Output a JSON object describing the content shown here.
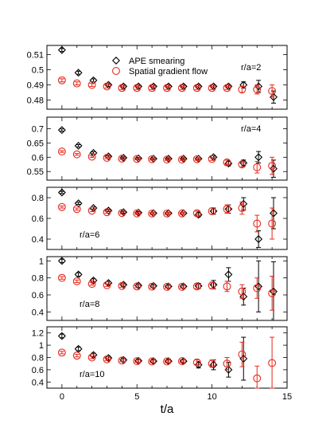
{
  "chart_data": {
    "type": "scatter",
    "xlabel": "t/a",
    "xlim": [
      -1,
      15
    ],
    "xticks": [
      "0",
      "5",
      "10",
      "15"
    ],
    "legend": {
      "placement": "top-center",
      "entries": [
        {
          "name": "APE smearing",
          "marker": "diamond",
          "color": "#000000"
        },
        {
          "name": "Spatial gradient flow",
          "marker": "circle",
          "color": "#e8291c"
        }
      ]
    },
    "panels": [
      {
        "label": "r/a=2",
        "ylim": [
          0.474,
          0.516
        ],
        "yticks": [
          "0.48",
          "0.49",
          "0.5",
          "0.51"
        ],
        "series": [
          {
            "name": "APE smearing",
            "points": [
              [
                0,
                0.513,
                0.001
              ],
              [
                1.1,
                0.498,
                0.001
              ],
              [
                2.1,
                0.493,
                0.001
              ],
              [
                3.1,
                0.49,
                0.001
              ],
              [
                4.1,
                0.489,
                0.001
              ],
              [
                5.1,
                0.489,
                0.001
              ],
              [
                6.1,
                0.489,
                0.001
              ],
              [
                7.1,
                0.489,
                0.001
              ],
              [
                8.1,
                0.489,
                0.001
              ],
              [
                9.1,
                0.489,
                0.001
              ],
              [
                10.1,
                0.489,
                0.001
              ],
              [
                11.1,
                0.489,
                0.001
              ],
              [
                12.1,
                0.49,
                0.002
              ],
              [
                13.1,
                0.489,
                0.004
              ],
              [
                14.1,
                0.482,
                0.004
              ]
            ]
          },
          {
            "name": "Spatial gradient flow",
            "points": [
              [
                0,
                0.493,
                0.001
              ],
              [
                1,
                0.491,
                0.001
              ],
              [
                2,
                0.49,
                0.001
              ],
              [
                3,
                0.489,
                0.001
              ],
              [
                4,
                0.488,
                0.001
              ],
              [
                5,
                0.488,
                0.001
              ],
              [
                6,
                0.488,
                0.001
              ],
              [
                7,
                0.488,
                0.001
              ],
              [
                8,
                0.488,
                0.001
              ],
              [
                9,
                0.488,
                0.001
              ],
              [
                10,
                0.488,
                0.001
              ],
              [
                11,
                0.488,
                0.001
              ],
              [
                12,
                0.487,
                0.002
              ],
              [
                13,
                0.487,
                0.003
              ],
              [
                14,
                0.486,
                0.004
              ]
            ]
          }
        ]
      },
      {
        "label": "r/a=4",
        "ylim": [
          0.52,
          0.74
        ],
        "yticks": [
          "0.55",
          "0.6",
          "0.65",
          "0.7"
        ],
        "series": [
          {
            "name": "APE smearing",
            "points": [
              [
                0,
                0.695,
                0.004
              ],
              [
                1.1,
                0.64,
                0.004
              ],
              [
                2.1,
                0.615,
                0.004
              ],
              [
                3.1,
                0.603,
                0.003
              ],
              [
                4.1,
                0.598,
                0.003
              ],
              [
                5.1,
                0.596,
                0.003
              ],
              [
                6.1,
                0.595,
                0.003
              ],
              [
                7.1,
                0.595,
                0.003
              ],
              [
                8.1,
                0.595,
                0.003
              ],
              [
                9.1,
                0.595,
                0.003
              ],
              [
                10.1,
                0.6,
                0.005
              ],
              [
                11.1,
                0.578,
                0.008
              ],
              [
                12.1,
                0.58,
                0.01
              ],
              [
                13.1,
                0.6,
                0.02
              ],
              [
                14.1,
                0.56,
                0.03
              ]
            ]
          },
          {
            "name": "Spatial gradient flow",
            "points": [
              [
                0,
                0.62,
                0.003
              ],
              [
                1,
                0.61,
                0.003
              ],
              [
                2,
                0.602,
                0.003
              ],
              [
                3,
                0.598,
                0.003
              ],
              [
                4,
                0.595,
                0.003
              ],
              [
                5,
                0.594,
                0.003
              ],
              [
                6,
                0.593,
                0.003
              ],
              [
                7,
                0.592,
                0.003
              ],
              [
                8,
                0.592,
                0.003
              ],
              [
                9,
                0.593,
                0.004
              ],
              [
                10,
                0.594,
                0.005
              ],
              [
                11,
                0.582,
                0.008
              ],
              [
                12,
                0.575,
                0.01
              ],
              [
                13,
                0.565,
                0.02
              ],
              [
                14,
                0.57,
                0.03
              ]
            ]
          }
        ]
      },
      {
        "label": "r/a=6",
        "ylim": [
          0.3,
          0.9
        ],
        "yticks": [
          "0.4",
          "0.6",
          "0.8"
        ],
        "series": [
          {
            "name": "APE smearing",
            "points": [
              [
                0,
                0.85,
                0.01
              ],
              [
                1.1,
                0.745,
                0.01
              ],
              [
                2.1,
                0.7,
                0.01
              ],
              [
                3.1,
                0.675,
                0.01
              ],
              [
                4.1,
                0.66,
                0.01
              ],
              [
                5.1,
                0.655,
                0.01
              ],
              [
                6.1,
                0.65,
                0.01
              ],
              [
                7.1,
                0.65,
                0.01
              ],
              [
                8.1,
                0.65,
                0.01
              ],
              [
                9.1,
                0.635,
                0.02
              ],
              [
                10.1,
                0.67,
                0.03
              ],
              [
                11.1,
                0.69,
                0.04
              ],
              [
                12.1,
                0.74,
                0.06
              ],
              [
                13.1,
                0.4,
                0.08
              ],
              [
                14.1,
                0.65,
                0.15
              ]
            ]
          },
          {
            "name": "Spatial gradient flow",
            "points": [
              [
                0,
                0.71,
                0.01
              ],
              [
                1,
                0.69,
                0.01
              ],
              [
                2,
                0.675,
                0.01
              ],
              [
                3,
                0.66,
                0.01
              ],
              [
                4,
                0.652,
                0.01
              ],
              [
                5,
                0.648,
                0.01
              ],
              [
                6,
                0.647,
                0.01
              ],
              [
                7,
                0.647,
                0.01
              ],
              [
                8,
                0.648,
                0.01
              ],
              [
                9,
                0.65,
                0.02
              ],
              [
                10,
                0.67,
                0.03
              ],
              [
                11,
                0.69,
                0.04
              ],
              [
                12,
                0.7,
                0.06
              ],
              [
                13,
                0.55,
                0.08
              ],
              [
                14,
                0.55,
                0.15
              ]
            ]
          }
        ]
      },
      {
        "label": "r/a=8",
        "ylim": [
          0.3,
          1.05
        ],
        "yticks": [
          "0.4",
          "0.6",
          "0.8",
          "1"
        ],
        "series": [
          {
            "name": "APE smearing",
            "points": [
              [
                0,
                1.0,
                0.02
              ],
              [
                1.1,
                0.84,
                0.02
              ],
              [
                2.1,
                0.77,
                0.02
              ],
              [
                3.1,
                0.74,
                0.02
              ],
              [
                4.1,
                0.72,
                0.02
              ],
              [
                5.1,
                0.71,
                0.02
              ],
              [
                6.1,
                0.705,
                0.02
              ],
              [
                7.1,
                0.7,
                0.02
              ],
              [
                8.1,
                0.7,
                0.02
              ],
              [
                9.1,
                0.705,
                0.03
              ],
              [
                10.1,
                0.72,
                0.05
              ],
              [
                11.1,
                0.84,
                0.08
              ],
              [
                12.1,
                0.58,
                0.1
              ],
              [
                13.1,
                0.7,
                0.3
              ],
              [
                14.1,
                0.64,
                0.35
              ]
            ]
          },
          {
            "name": "Spatial gradient flow",
            "points": [
              [
                0,
                0.8,
                0.015
              ],
              [
                1,
                0.76,
                0.015
              ],
              [
                2,
                0.73,
                0.015
              ],
              [
                3,
                0.715,
                0.015
              ],
              [
                4,
                0.705,
                0.015
              ],
              [
                5,
                0.7,
                0.015
              ],
              [
                6,
                0.697,
                0.015
              ],
              [
                7,
                0.695,
                0.015
              ],
              [
                8,
                0.695,
                0.015
              ],
              [
                9,
                0.7,
                0.025
              ],
              [
                10,
                0.71,
                0.04
              ],
              [
                11,
                0.7,
                0.06
              ],
              [
                12,
                0.64,
                0.08
              ],
              [
                13,
                0.68,
                0.12
              ],
              [
                14,
                0.62,
                0.2
              ]
            ]
          }
        ]
      },
      {
        "label": "r/a=10",
        "ylim": [
          0.3,
          1.3
        ],
        "yticks": [
          "0.4",
          "0.6",
          "0.8",
          "1",
          "1.2"
        ],
        "series": [
          {
            "name": "APE smearing",
            "points": [
              [
                0,
                1.15,
                0.03
              ],
              [
                1.1,
                0.94,
                0.03
              ],
              [
                2.1,
                0.84,
                0.03
              ],
              [
                3.1,
                0.79,
                0.03
              ],
              [
                4.1,
                0.76,
                0.03
              ],
              [
                5.1,
                0.745,
                0.03
              ],
              [
                6.1,
                0.74,
                0.03
              ],
              [
                7.1,
                0.74,
                0.03
              ],
              [
                8.1,
                0.74,
                0.03
              ],
              [
                9.1,
                0.68,
                0.05
              ],
              [
                10.1,
                0.68,
                0.08
              ],
              [
                11.1,
                0.6,
                0.12
              ],
              [
                12.1,
                0.78,
                0.35
              ]
            ]
          },
          {
            "name": "Spatial gradient flow",
            "points": [
              [
                0,
                0.88,
                0.02
              ],
              [
                1,
                0.83,
                0.02
              ],
              [
                2,
                0.8,
                0.02
              ],
              [
                3,
                0.77,
                0.02
              ],
              [
                4,
                0.75,
                0.02
              ],
              [
                5,
                0.74,
                0.02
              ],
              [
                6,
                0.735,
                0.02
              ],
              [
                7,
                0.735,
                0.02
              ],
              [
                8,
                0.74,
                0.02
              ],
              [
                9,
                0.72,
                0.04
              ],
              [
                10,
                0.7,
                0.06
              ],
              [
                11,
                0.7,
                0.1
              ],
              [
                12,
                0.85,
                0.2
              ],
              [
                13,
                0.46,
                0.2
              ],
              [
                14,
                0.71,
                0.42
              ]
            ]
          }
        ]
      }
    ]
  }
}
